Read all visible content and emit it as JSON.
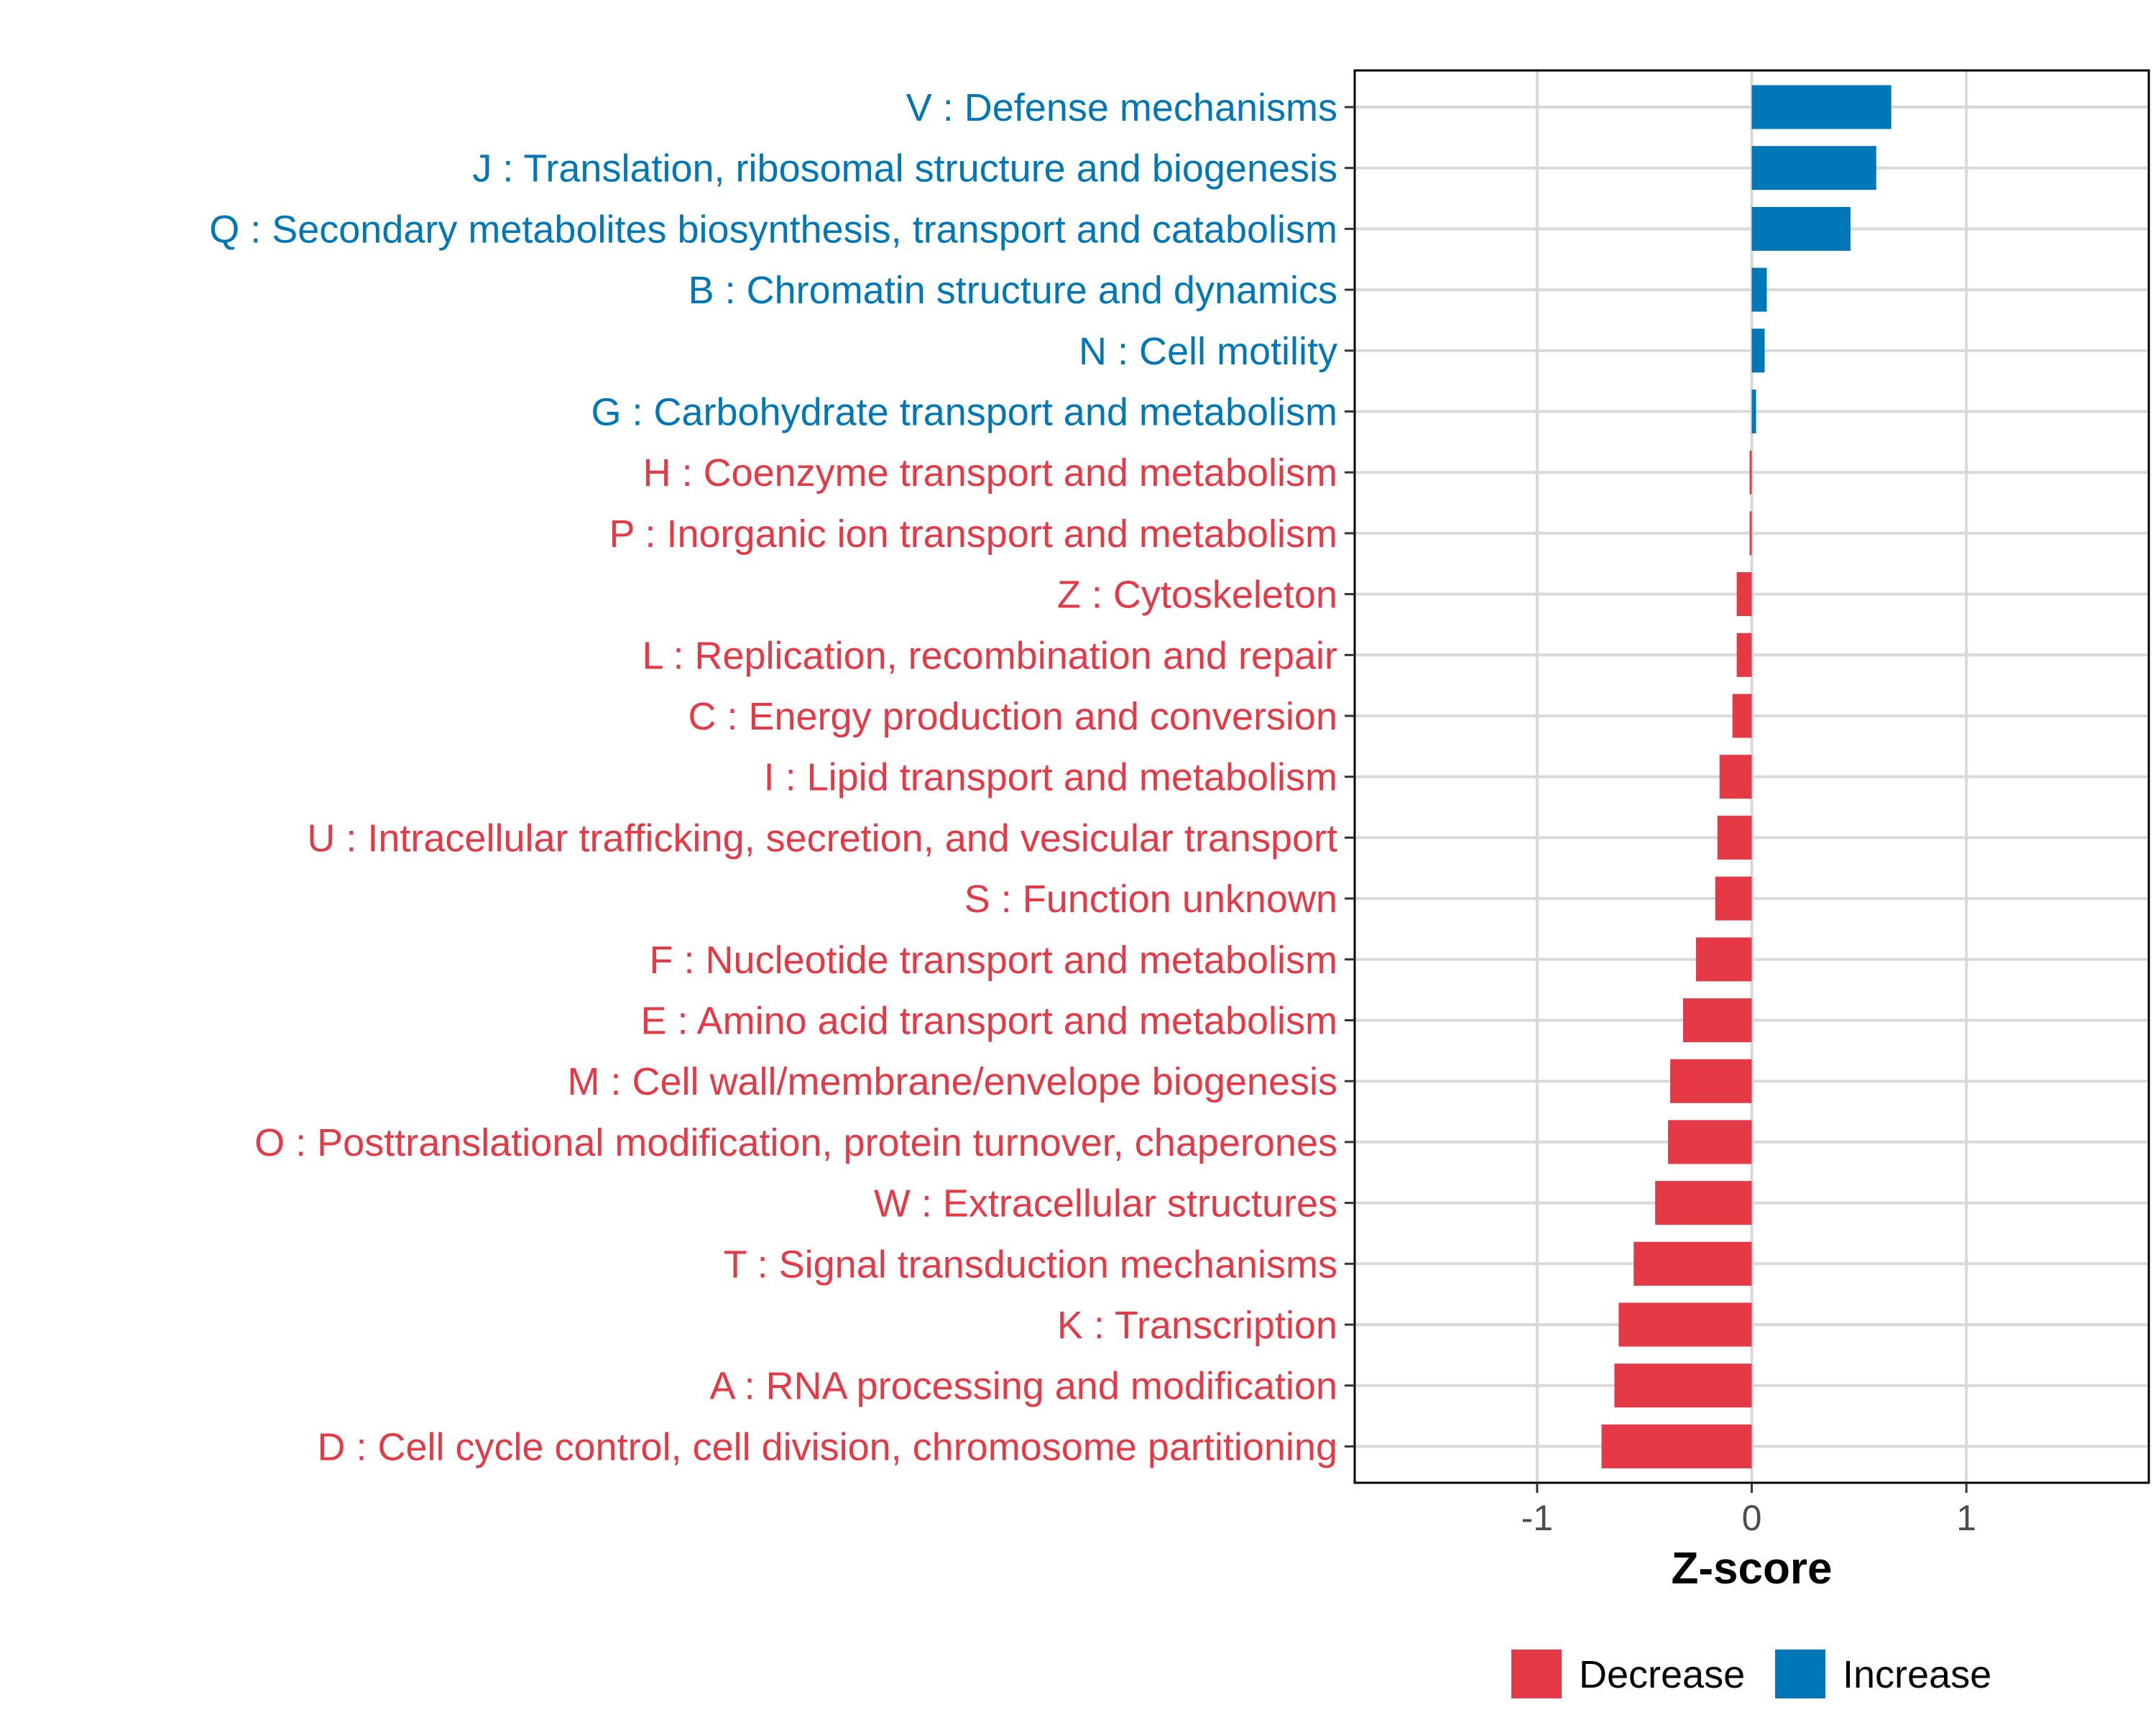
{
  "chart_data": {
    "type": "bar",
    "orientation": "horizontal",
    "categories": [
      "V : Defense mechanisms",
      "J : Translation, ribosomal structure and biogenesis",
      "Q : Secondary metabolites biosynthesis, transport and catabolism",
      "B : Chromatin structure and dynamics",
      "N : Cell motility",
      "G : Carbohydrate transport and metabolism",
      "H : Coenzyme transport and metabolism",
      "P : Inorganic ion transport and metabolism",
      "Z : Cytoskeleton",
      "L : Replication, recombination and repair",
      "C : Energy production and conversion",
      "I : Lipid transport and metabolism",
      "U : Intracellular trafficking, secretion, and vesicular transport",
      "S : Function unknown",
      "F : Nucleotide transport and metabolism",
      "E : Amino acid transport and metabolism",
      "M : Cell wall/membrane/envelope biogenesis",
      "O : Posttranslational modification, protein turnover, chaperones",
      "W : Extracellular structures",
      "T : Signal transduction mechanisms",
      "K : Transcription",
      "A : RNA processing and modification",
      "D : Cell cycle control, cell division, chromosome partitioning"
    ],
    "values": [
      0.65,
      0.58,
      0.46,
      0.07,
      0.06,
      0.02,
      -0.01,
      -0.01,
      -0.07,
      -0.07,
      -0.09,
      -0.15,
      -0.16,
      -0.17,
      -0.26,
      -0.32,
      -0.38,
      -0.39,
      -0.45,
      -0.55,
      -0.62,
      -0.64,
      -0.7
    ],
    "directions": [
      "Increase",
      "Increase",
      "Increase",
      "Increase",
      "Increase",
      "Increase",
      "Decrease",
      "Decrease",
      "Decrease",
      "Decrease",
      "Decrease",
      "Decrease",
      "Decrease",
      "Decrease",
      "Decrease",
      "Decrease",
      "Decrease",
      "Decrease",
      "Decrease",
      "Decrease",
      "Decrease",
      "Decrease",
      "Decrease"
    ],
    "xlabel": "Z-score",
    "ylabel": "",
    "xlim": [
      -1.85,
      1.85
    ],
    "xticks": [
      -1,
      0,
      1
    ],
    "xtick_labels": [
      "-1",
      "0",
      "1"
    ],
    "grid": true,
    "legend": {
      "position": "bottom",
      "entries": [
        {
          "label": "Decrease",
          "color": "#E63946"
        },
        {
          "label": "Increase",
          "color": "#0077B6"
        }
      ]
    },
    "colors": {
      "Decrease": "#E63946",
      "Increase": "#0077B6"
    }
  }
}
